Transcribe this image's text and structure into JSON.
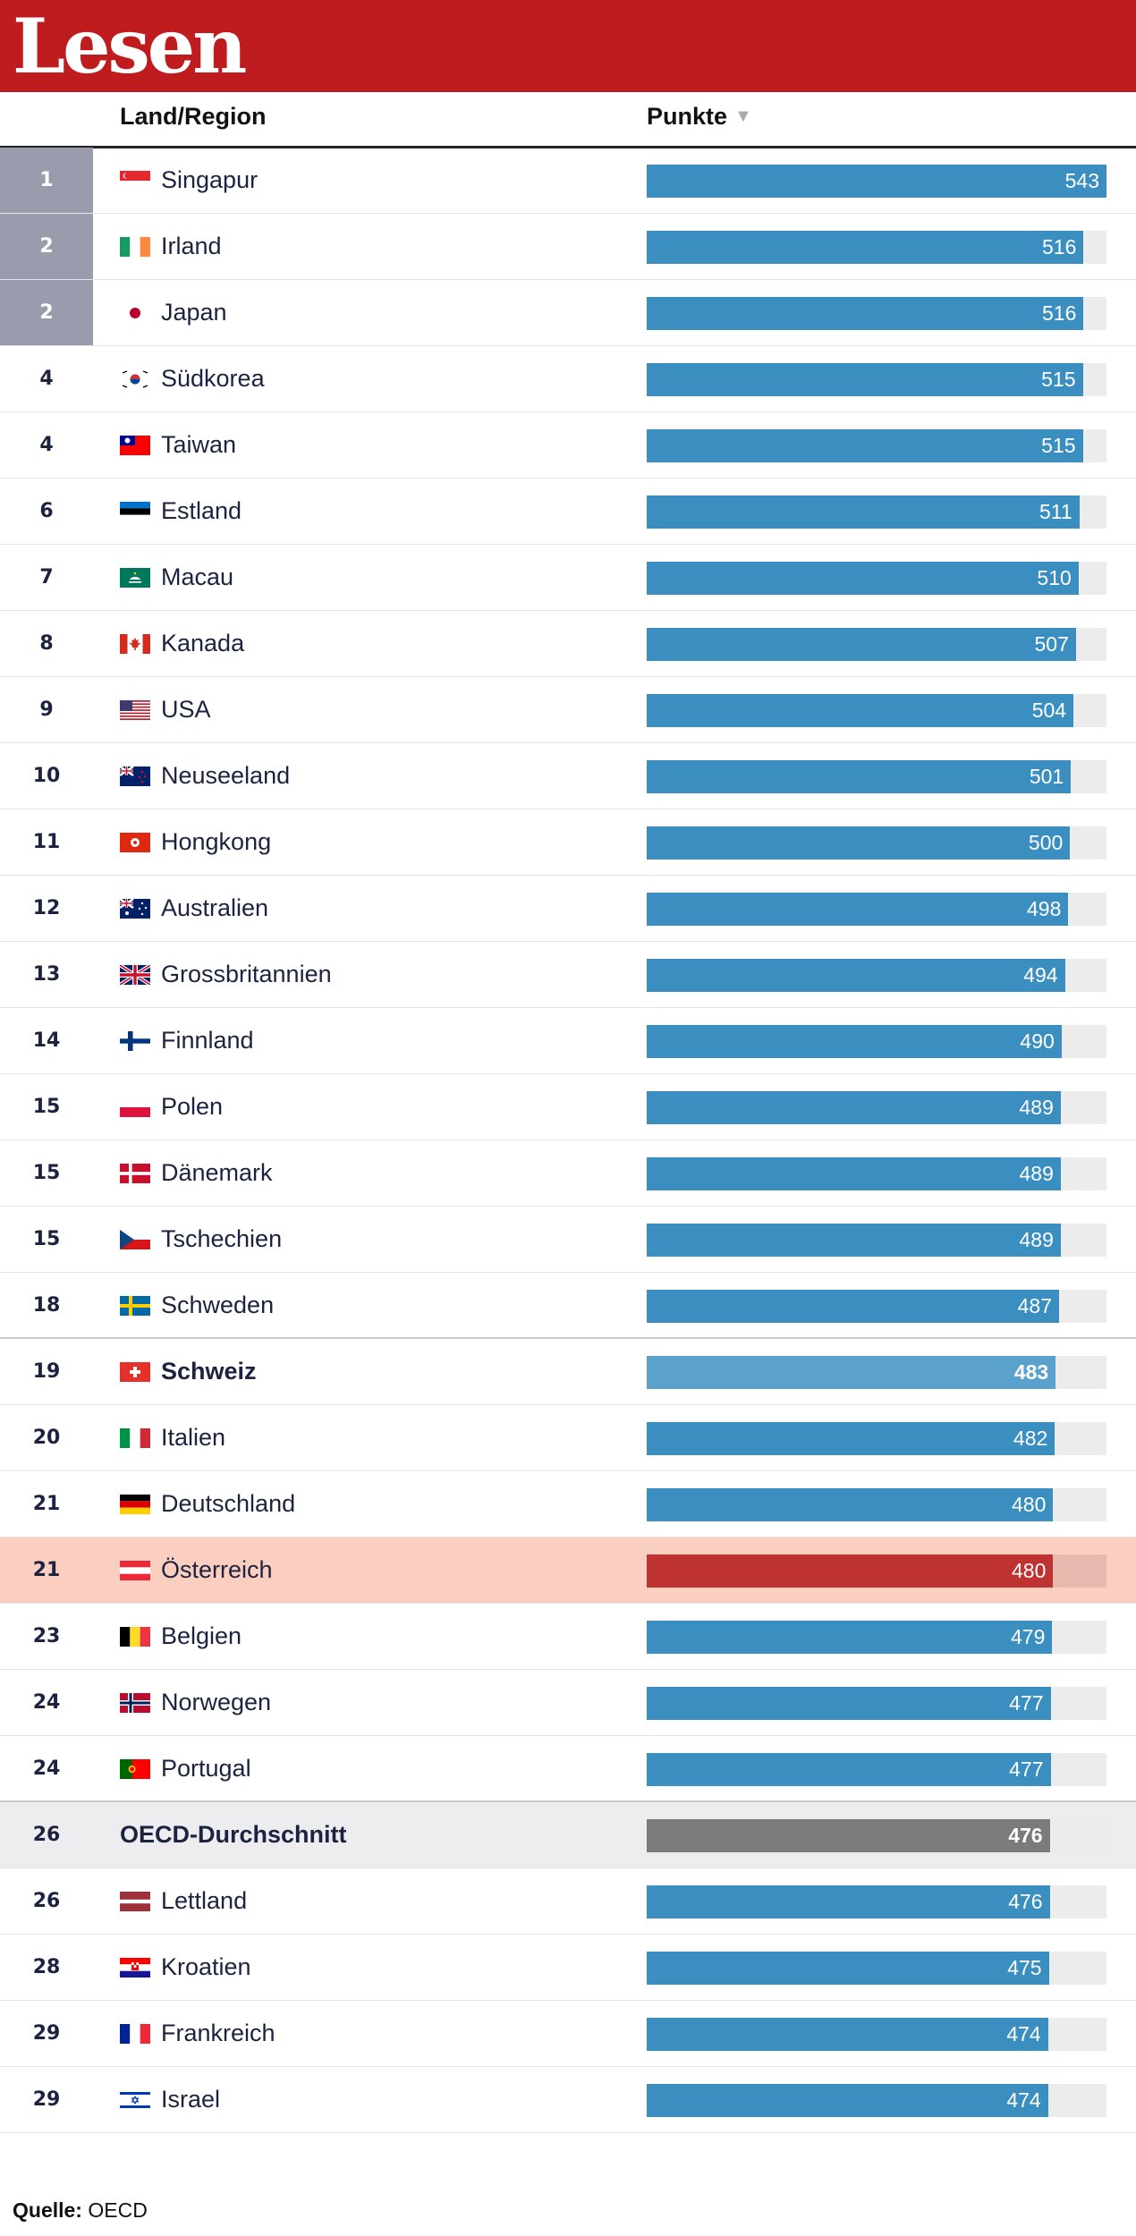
{
  "header": {
    "title": "Lesen"
  },
  "columns": {
    "country": "Land/Region",
    "points": "Punkte",
    "sort_icon": "▼"
  },
  "source": {
    "label": "Quelle:",
    "value": "OECD"
  },
  "colors": {
    "brand_red": "#be1c1f",
    "bar_blue": "#3a8fc0",
    "bar_switzerland": "#5aa2cc",
    "bar_austria": "#bf3232",
    "bar_oecd": "#7b7b7b",
    "highlight_austria": "#fbcfbf",
    "highlight_oecd": "#ededf0",
    "top_rank_bg": "#9a9cad"
  },
  "chart_data": {
    "type": "bar",
    "title": "Lesen",
    "xlabel": "Punkte",
    "ylabel": "Land/Region",
    "orientation": "horizontal",
    "xlim": [
      0,
      543
    ],
    "rows": [
      {
        "rank": "1",
        "name": "Singapur",
        "value": 543,
        "flag": "sg",
        "top": true
      },
      {
        "rank": "2",
        "name": "Irland",
        "value": 516,
        "flag": "ie",
        "top": true
      },
      {
        "rank": "2",
        "name": "Japan",
        "value": 516,
        "flag": "jp",
        "top": true
      },
      {
        "rank": "4",
        "name": "Südkorea",
        "value": 515,
        "flag": "kr"
      },
      {
        "rank": "4",
        "name": "Taiwan",
        "value": 515,
        "flag": "tw"
      },
      {
        "rank": "6",
        "name": "Estland",
        "value": 511,
        "flag": "ee"
      },
      {
        "rank": "7",
        "name": "Macau",
        "value": 510,
        "flag": "mo"
      },
      {
        "rank": "8",
        "name": "Kanada",
        "value": 507,
        "flag": "ca"
      },
      {
        "rank": "9",
        "name": "USA",
        "value": 504,
        "flag": "us"
      },
      {
        "rank": "10",
        "name": "Neuseeland",
        "value": 501,
        "flag": "nz"
      },
      {
        "rank": "11",
        "name": "Hongkong",
        "value": 500,
        "flag": "hk"
      },
      {
        "rank": "12",
        "name": "Australien",
        "value": 498,
        "flag": "au"
      },
      {
        "rank": "13",
        "name": "Grossbritannien",
        "value": 494,
        "flag": "gb"
      },
      {
        "rank": "14",
        "name": "Finnland",
        "value": 490,
        "flag": "fi"
      },
      {
        "rank": "15",
        "name": "Polen",
        "value": 489,
        "flag": "pl"
      },
      {
        "rank": "15",
        "name": "Dänemark",
        "value": 489,
        "flag": "dk"
      },
      {
        "rank": "15",
        "name": "Tschechien",
        "value": 489,
        "flag": "cz"
      },
      {
        "rank": "18",
        "name": "Schweden",
        "value": 487,
        "flag": "se",
        "thick": true
      },
      {
        "rank": "19",
        "name": "Schweiz",
        "value": 483,
        "flag": "ch",
        "bold": true,
        "style": "ch"
      },
      {
        "rank": "20",
        "name": "Italien",
        "value": 482,
        "flag": "it"
      },
      {
        "rank": "21",
        "name": "Deutschland",
        "value": 480,
        "flag": "de"
      },
      {
        "rank": "21",
        "name": "Österreich",
        "value": 480,
        "flag": "at",
        "style": "at"
      },
      {
        "rank": "23",
        "name": "Belgien",
        "value": 479,
        "flag": "be"
      },
      {
        "rank": "24",
        "name": "Norwegen",
        "value": 477,
        "flag": "no"
      },
      {
        "rank": "24",
        "name": "Portugal",
        "value": 477,
        "flag": "pt",
        "thick": true
      },
      {
        "rank": "26",
        "name": "OECD-Durchschnitt",
        "value": 476,
        "flag": "",
        "bold": true,
        "style": "oecd"
      },
      {
        "rank": "26",
        "name": "Lettland",
        "value": 476,
        "flag": "lv"
      },
      {
        "rank": "28",
        "name": "Kroatien",
        "value": 475,
        "flag": "hr"
      },
      {
        "rank": "29",
        "name": "Frankreich",
        "value": 474,
        "flag": "fr"
      },
      {
        "rank": "29",
        "name": "Israel",
        "value": 474,
        "flag": "il"
      }
    ]
  }
}
